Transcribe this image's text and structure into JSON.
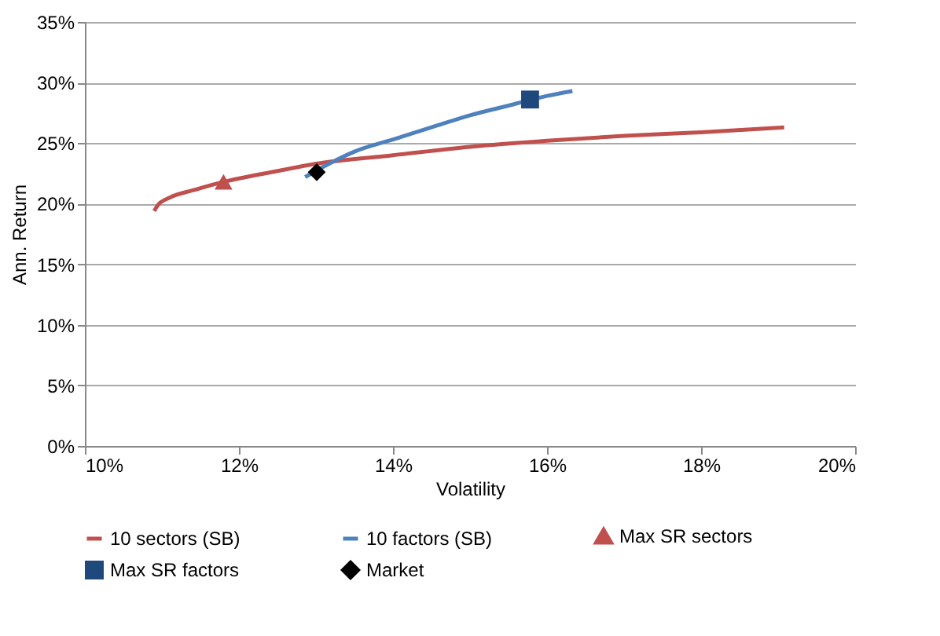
{
  "chart_data": {
    "type": "line",
    "xlabel": "Volatility",
    "ylabel": "Ann. Return",
    "xlim": [
      10,
      20
    ],
    "xticks": [
      {
        "value": 10,
        "label": "10%"
      },
      {
        "value": 12,
        "label": "12%"
      },
      {
        "value": 14,
        "label": "14%"
      },
      {
        "value": 16,
        "label": "16%"
      },
      {
        "value": 18,
        "label": "18%"
      },
      {
        "value": 20,
        "label": "20%"
      }
    ],
    "ylim": [
      0,
      35
    ],
    "yticks": [
      {
        "value": 0,
        "label": "0%"
      },
      {
        "value": 5,
        "label": "5%"
      },
      {
        "value": 10,
        "label": "10%"
      },
      {
        "value": 15,
        "label": "15%"
      },
      {
        "value": 20,
        "label": "20%"
      },
      {
        "value": 25,
        "label": "25%"
      },
      {
        "value": 30,
        "label": "30%"
      },
      {
        "value": 35,
        "label": "35%"
      }
    ],
    "grid": "y",
    "legend": "bottom",
    "series": [
      {
        "name": "10 sectors (SB)",
        "color": "#c0504d",
        "x": [
          10.9,
          10.95,
          11.1,
          11.4,
          11.8,
          12.5,
          13,
          14,
          15,
          16,
          17,
          18,
          19.08
        ],
        "values": [
          19.4,
          19.9,
          20.5,
          21.1,
          21.8,
          22.7,
          23.3,
          24.0,
          24.7,
          25.2,
          25.6,
          25.9,
          26.3
        ]
      },
      {
        "name": "10 factors (SB)",
        "color": "#4f81bd",
        "x": [
          12.86,
          13.2,
          13.5,
          14,
          14.5,
          15,
          15.5,
          16,
          16.33
        ],
        "values": [
          22.2,
          23.4,
          24.3,
          25.3,
          26.3,
          27.3,
          28.1,
          28.9,
          29.3
        ]
      },
      {
        "name": "Max SR sectors",
        "type": "scatter",
        "marker": "triangle",
        "color": "#c0504d",
        "x": [
          11.8
        ],
        "values": [
          21.8
        ]
      },
      {
        "name": "Max SR factors",
        "type": "scatter",
        "marker": "square",
        "color": "#1f497d",
        "x": [
          15.78
        ],
        "values": [
          28.6
        ]
      },
      {
        "name": "Market",
        "type": "scatter",
        "marker": "diamond",
        "color": "#000000",
        "x": [
          13.01
        ],
        "values": [
          22.6
        ]
      }
    ]
  }
}
